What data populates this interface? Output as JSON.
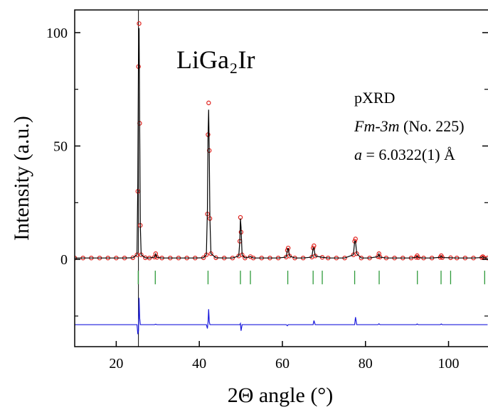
{
  "chart_data": {
    "type": "xrd",
    "title": "LiGa₂Ir",
    "annotations": [
      {
        "text": "pXRD"
      },
      {
        "italic": "Fm-3m",
        "text": " (No. 225)"
      },
      {
        "italic": "a",
        "text": " = 6.0322(1) Å"
      }
    ],
    "x_label": "2Θ angle (°)",
    "y_label": "Intensity (a.u.)",
    "xlim": [
      10,
      109.5
    ],
    "ylim": [
      -38.5,
      110
    ],
    "xticks": [
      20,
      40,
      60,
      80,
      100
    ],
    "yticks": [
      0,
      50,
      100
    ],
    "minor_yticks": [
      -25,
      25,
      75
    ],
    "x": [
      10,
      12,
      14,
      16,
      18,
      20,
      22,
      24,
      25.0,
      25.2,
      25.35,
      25.5,
      25.65,
      25.8,
      26.0,
      27,
      28,
      29.2,
      29.5,
      29.8,
      31,
      33,
      35,
      37,
      39,
      41,
      41.7,
      41.95,
      42.1,
      42.25,
      42.4,
      42.55,
      42.8,
      44,
      46,
      48,
      49.5,
      49.75,
      49.9,
      50.05,
      50.3,
      51,
      52.3,
      53,
      55,
      57,
      59,
      60.9,
      61.2,
      61.4,
      61.7,
      63,
      65,
      67.1,
      67.4,
      67.6,
      67.9,
      69.6,
      71,
      73,
      75,
      77.1,
      77.4,
      77.6,
      77.9,
      79,
      81,
      83.0,
      83.25,
      83.5,
      85,
      87,
      89,
      91,
      92.2,
      92.45,
      92.7,
      94,
      96,
      98.0,
      98.25,
      98.5,
      100.5,
      102,
      104,
      106,
      108.0,
      108.25,
      108.5,
      109.4
    ],
    "series": [
      {
        "name": "observed",
        "color": "#e0201b",
        "values": [
          0.6,
          0.6,
          0.6,
          0.6,
          0.6,
          0.6,
          0.6,
          0.7,
          2,
          30,
          85,
          104,
          60,
          15,
          2,
          0.7,
          0.6,
          1,
          2.5,
          0.9,
          0.6,
          0.6,
          0.6,
          0.6,
          0.6,
          0.7,
          2,
          20,
          55,
          69,
          48,
          18,
          2.5,
          0.7,
          0.6,
          0.6,
          1.5,
          8,
          18.5,
          12,
          2,
          0.6,
          1.2,
          0.6,
          0.6,
          0.6,
          0.6,
          1,
          4,
          5,
          1.5,
          0.6,
          0.6,
          1,
          5,
          6,
          1.5,
          0.9,
          0.6,
          0.6,
          0.6,
          2,
          8,
          9,
          2.5,
          0.6,
          0.6,
          1.2,
          2.5,
          1,
          0.6,
          0.6,
          0.6,
          0.6,
          0.9,
          1.6,
          0.8,
          0.6,
          0.6,
          0.9,
          1.6,
          0.8,
          0.7,
          0.6,
          0.6,
          0.6,
          0.8,
          1.2,
          0.7,
          0.6
        ]
      },
      {
        "name": "calculated",
        "color": "#000000",
        "values": [
          0.6,
          0.6,
          0.6,
          0.6,
          0.6,
          0.6,
          0.6,
          0.7,
          2,
          34,
          88,
          102,
          58,
          15,
          2,
          0.7,
          0.6,
          1,
          2.4,
          0.9,
          0.6,
          0.6,
          0.6,
          0.6,
          0.6,
          0.7,
          2,
          22,
          54,
          66,
          47,
          18,
          2.5,
          0.7,
          0.6,
          0.6,
          1.5,
          8,
          18,
          14,
          2,
          0.6,
          1.2,
          0.6,
          0.6,
          0.6,
          0.6,
          1,
          4,
          5,
          1.5,
          0.6,
          0.6,
          1,
          5,
          5,
          1.5,
          0.9,
          0.6,
          0.6,
          0.6,
          2,
          8,
          8,
          2.5,
          0.6,
          0.6,
          1.2,
          2.4,
          1,
          0.6,
          0.6,
          0.6,
          0.6,
          0.9,
          1.5,
          0.8,
          0.6,
          0.6,
          0.9,
          1.5,
          0.8,
          0.7,
          0.6,
          0.6,
          0.6,
          0.8,
          1.2,
          0.7,
          0.6
        ]
      },
      {
        "name": "difference",
        "color": "#1a1adc",
        "values": [
          -28.8,
          -28.8,
          -28.8,
          -28.8,
          -28.8,
          -28.8,
          -28.8,
          -28.8,
          -28.8,
          -33,
          -31.5,
          -17,
          -26,
          -28.8,
          -28.8,
          -28.8,
          -28.8,
          -28.8,
          -28.6,
          -28.8,
          -28.8,
          -28.8,
          -28.8,
          -28.8,
          -28.8,
          -28.8,
          -28.8,
          -30.5,
          -27.8,
          -22,
          -27.5,
          -28.8,
          -28.8,
          -28.8,
          -28.8,
          -28.8,
          -28.8,
          -28.8,
          -28.3,
          -31.5,
          -28.8,
          -28.8,
          -28.8,
          -28.8,
          -28.8,
          -28.8,
          -28.8,
          -28.8,
          -29.3,
          -28.8,
          -28.8,
          -28.8,
          -28.8,
          -28.8,
          -28.8,
          -27,
          -28.8,
          -28.8,
          -28.8,
          -28.8,
          -28.8,
          -28.8,
          -28.8,
          -25.5,
          -28.8,
          -28.8,
          -28.8,
          -28.8,
          -28.4,
          -28.8,
          -28.8,
          -28.8,
          -28.8,
          -28.8,
          -28.8,
          -28.5,
          -28.8,
          -28.8,
          -28.8,
          -28.8,
          -28.5,
          -28.8,
          -28.8,
          -28.8,
          -28.8,
          -28.8,
          -28.8,
          -28.8,
          -28.8,
          -28.8
        ]
      }
    ],
    "bragg_color": "#2e9a3a",
    "bragg_span": [
      -11,
      -5
    ],
    "bragg_positions": [
      25.3,
      29.4,
      42.1,
      49.9,
      52.3,
      61.3,
      67.4,
      69.6,
      77.4,
      83.3,
      92.5,
      98.2,
      100.5,
      108.7
    ],
    "vline": 25.35
  }
}
